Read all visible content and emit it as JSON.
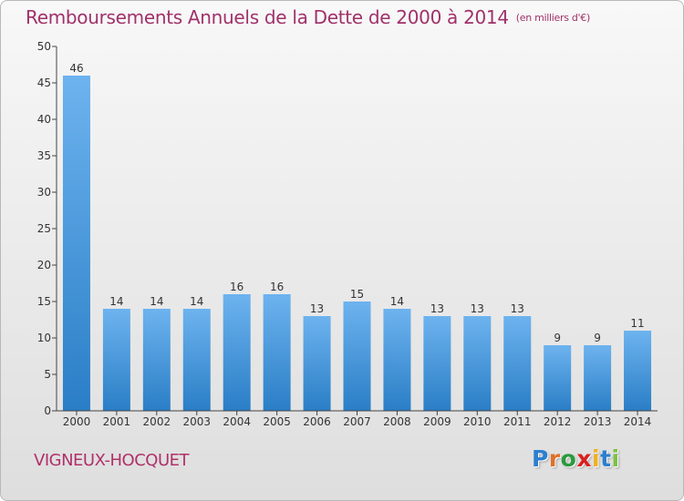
{
  "title": "Remboursements Annuels de la Dette de 2000 à 2014",
  "unit_note": "(en milliers d'€)",
  "commune": "VIGNEUX-HOCQUET",
  "logo": {
    "text": "Proxiti",
    "letter_colors": [
      "#2b7fcf",
      "#e0702a",
      "#2b9a3e",
      "#d9201f",
      "#f0b020",
      "#2b7fcf",
      "#7cc242"
    ]
  },
  "colors": {
    "bar_top": "#6db3ef",
    "bar_bottom": "#2a7ec6",
    "title": "#a0316a",
    "commune": "#b0306a",
    "axis": "#444444"
  },
  "chart_data": {
    "type": "bar",
    "categories": [
      "2000",
      "2001",
      "2002",
      "2003",
      "2004",
      "2005",
      "2006",
      "2007",
      "2008",
      "2009",
      "2010",
      "2011",
      "2012",
      "2013",
      "2014"
    ],
    "values": [
      46,
      14,
      14,
      14,
      16,
      16,
      13,
      15,
      14,
      13,
      13,
      13,
      9,
      9,
      11
    ],
    "ylim": [
      0,
      50
    ],
    "yticks": [
      0,
      5,
      10,
      15,
      20,
      25,
      30,
      35,
      40,
      45,
      50
    ],
    "grid": false,
    "legend": "none"
  }
}
